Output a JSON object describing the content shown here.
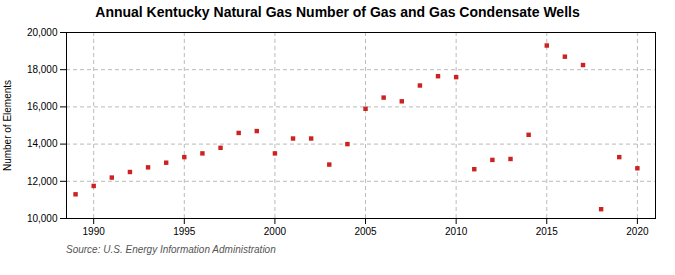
{
  "chart_data": {
    "type": "scatter",
    "title": "Annual Kentucky Natural Gas Number of Gas and Gas Condensate Wells",
    "ylabel": "Number of Elements",
    "annotation": "Source: U.S. Energy Information Administration",
    "x": [
      1989,
      1990,
      1991,
      1992,
      1993,
      1994,
      1995,
      1996,
      1997,
      1998,
      1999,
      2000,
      2001,
      2002,
      2003,
      2004,
      2005,
      2006,
      2007,
      2008,
      2009,
      2010,
      2011,
      2012,
      2013,
      2014,
      2015,
      2016,
      2017,
      2018,
      2019,
      2020
    ],
    "values": [
      11300,
      11750,
      12200,
      12500,
      12750,
      13000,
      13300,
      13500,
      13800,
      14600,
      14700,
      13500,
      14300,
      14300,
      12900,
      14000,
      15900,
      16500,
      16300,
      17150,
      17650,
      17600,
      12650,
      13150,
      13200,
      14500,
      19300,
      18700,
      18250,
      10500,
      13300,
      12700
    ],
    "color": "#cc2222",
    "marker": "square",
    "xlim": [
      1988.5,
      2021
    ],
    "ylim": [
      10000,
      20000
    ],
    "xticks": [
      1990,
      1995,
      2000,
      2005,
      2010,
      2015,
      2020
    ],
    "yticks": [
      {
        "value": 10000,
        "label": "10,000"
      },
      {
        "value": 12000,
        "label": "12,000"
      },
      {
        "value": 14000,
        "label": "14,000"
      },
      {
        "value": 16000,
        "label": "16,000"
      },
      {
        "value": 18000,
        "label": "18,000"
      },
      {
        "value": 20000,
        "label": "20,000"
      }
    ],
    "grid": true
  }
}
